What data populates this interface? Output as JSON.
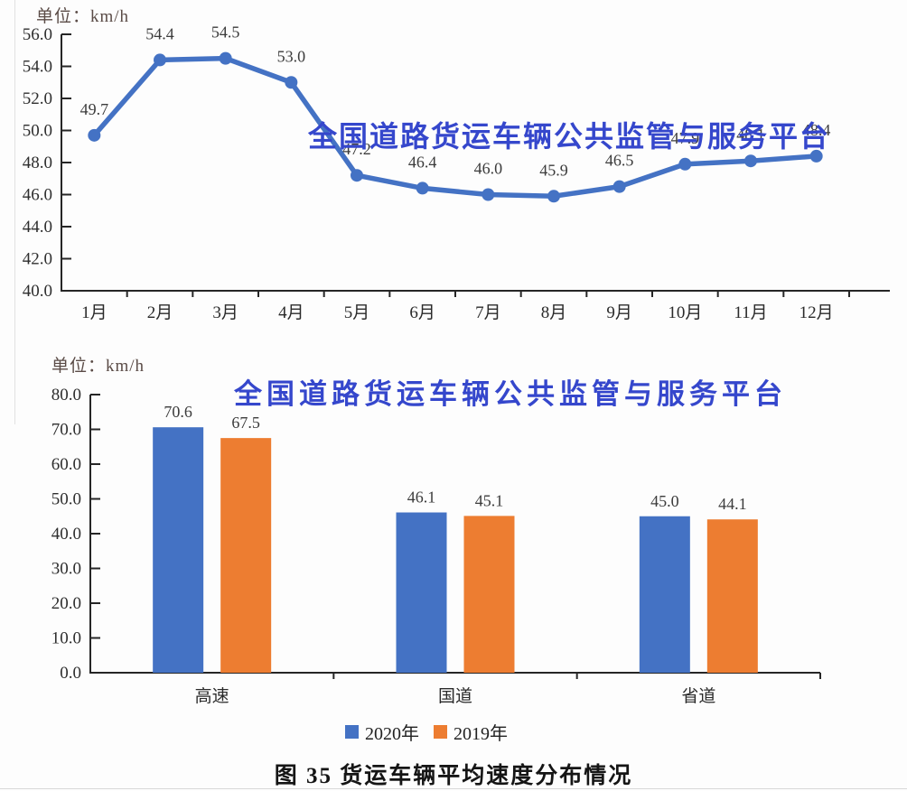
{
  "watermark": {
    "text": "全国道路货运车辆公共监管与服务平台",
    "color": "#3547cc"
  },
  "caption": "图 35 货运车辆平均速度分布情况",
  "line_chart": {
    "unit_label": "单位：km/h"
  },
  "bar_chart": {
    "unit_label": "单位：km/h",
    "legend": [
      {
        "label": "2020年",
        "color": "#4472C4"
      },
      {
        "label": "2019年",
        "color": "#ED7D31"
      }
    ]
  },
  "colors": {
    "blue": "#4472C4",
    "orange": "#ED7D31",
    "axis": "#262626"
  },
  "chart_data": [
    {
      "type": "line",
      "title": "",
      "unit": "km/h",
      "categories": [
        "1月",
        "2月",
        "3月",
        "4月",
        "5月",
        "6月",
        "7月",
        "8月",
        "9月",
        "10月",
        "11月",
        "12月"
      ],
      "series": [
        {
          "name": "货运车辆平均速度",
          "color": "#4472C4",
          "values": [
            49.7,
            54.4,
            54.5,
            53.0,
            47.2,
            46.4,
            46.0,
            45.9,
            46.5,
            47.9,
            48.1,
            48.4
          ]
        }
      ],
      "xlabel": "",
      "ylabel": "",
      "ylim": [
        40.0,
        56.0
      ],
      "ytick_step": 2.0,
      "grid": false,
      "data_labels": true,
      "legend_position": "none"
    },
    {
      "type": "bar",
      "title": "",
      "unit": "km/h",
      "categories": [
        "高速",
        "国道",
        "省道"
      ],
      "series": [
        {
          "name": "2020年",
          "color": "#4472C4",
          "values": [
            70.6,
            46.1,
            45.0
          ]
        },
        {
          "name": "2019年",
          "color": "#ED7D31",
          "values": [
            67.5,
            45.1,
            44.1
          ]
        }
      ],
      "xlabel": "",
      "ylabel": "",
      "ylim": [
        0.0,
        80.0
      ],
      "ytick_step": 10.0,
      "grid": false,
      "data_labels": true,
      "legend_position": "bottom"
    }
  ]
}
